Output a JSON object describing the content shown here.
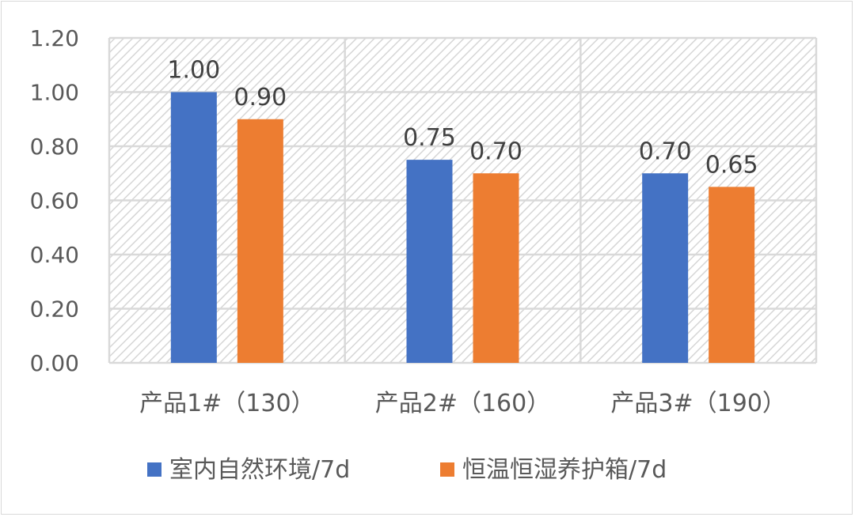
{
  "chart_data": {
    "type": "bar",
    "title": "",
    "xlabel": "",
    "ylabel": "",
    "categories": [
      "产品1#（130）",
      "产品2#（160）",
      "产品3#（190）"
    ],
    "series": [
      {
        "name": "室内自然环境/7d",
        "color": "#4472c4",
        "values": [
          1.0,
          0.75,
          0.7
        ]
      },
      {
        "name": "恒温恒湿养护箱/7d",
        "color": "#ed7d31",
        "values": [
          0.9,
          0.7,
          0.65
        ]
      }
    ],
    "ylim": [
      0,
      1.2
    ],
    "yticks": [
      "0.00",
      "0.20",
      "0.40",
      "0.60",
      "0.80",
      "1.00",
      "1.20"
    ],
    "grid": true,
    "legend_position": "bottom",
    "data_labels": true
  }
}
